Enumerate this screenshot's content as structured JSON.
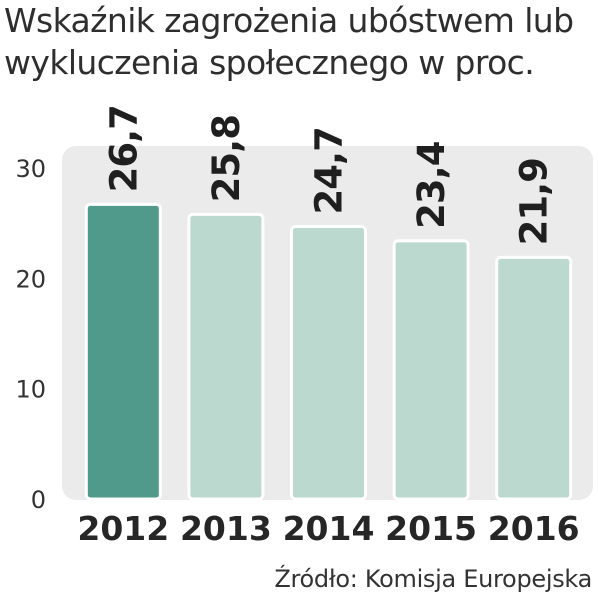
{
  "title_lines": [
    "Wskaźnik zagrożenia ubóstwem lub",
    "wykluczenia społecznego w proc."
  ],
  "source": "Źródło: Komisja Europejska",
  "colors": {
    "highlight_bar": "#4f9a8a",
    "bar": "#bcd9d0",
    "plot_background": "#ebebeb",
    "text": "#2b2b2b"
  },
  "chart_data": {
    "type": "bar",
    "categories": [
      "2012",
      "2013",
      "2014",
      "2015",
      "2016"
    ],
    "values": [
      26.7,
      25.8,
      24.7,
      23.4,
      21.9
    ],
    "value_labels": [
      "26,7",
      "25,8",
      "24,7",
      "23,4",
      "21,9"
    ],
    "highlight_index": 0,
    "yticks": [
      0,
      10,
      20,
      30
    ],
    "ylim": [
      0,
      30
    ],
    "grid": false,
    "legend": "none"
  }
}
